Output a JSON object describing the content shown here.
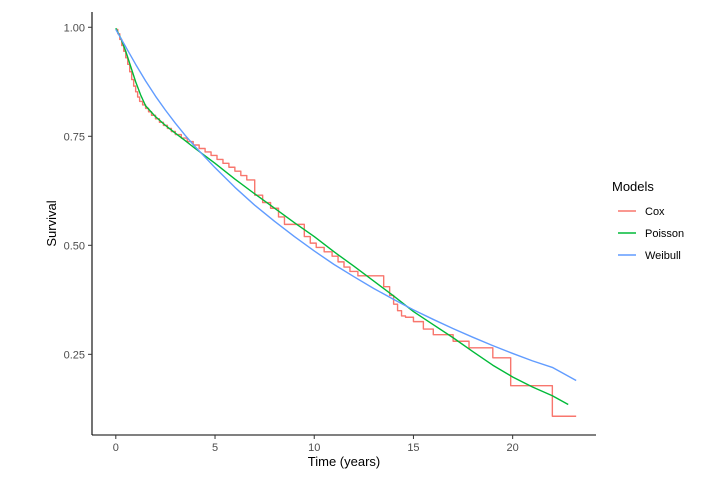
{
  "chart_data": {
    "type": "line",
    "title": "",
    "xlabel": "Time (years)",
    "ylabel": "Survival",
    "xlim": [
      -1.2,
      24.2
    ],
    "ylim": [
      0.065,
      1.035
    ],
    "xticks": [
      0,
      5,
      10,
      15,
      20
    ],
    "xtick_labels": [
      "0",
      "5",
      "10",
      "15",
      "20"
    ],
    "yticks": [
      0.25,
      0.5,
      0.75,
      1.0
    ],
    "ytick_labels": [
      "0.25",
      "0.50",
      "0.75",
      "1.00"
    ],
    "grid": false,
    "legend": {
      "title": "Models",
      "placement": "right"
    },
    "series": [
      {
        "name": "Cox",
        "style": "step",
        "color": "#F8766D",
        "x": [
          0,
          0.1,
          0.2,
          0.3,
          0.4,
          0.5,
          0.6,
          0.7,
          0.8,
          0.9,
          1.0,
          1.1,
          1.2,
          1.35,
          1.5,
          1.65,
          1.8,
          2.0,
          2.2,
          2.4,
          2.6,
          2.8,
          3.0,
          3.3,
          3.6,
          3.9,
          4.2,
          4.5,
          4.8,
          5.1,
          5.4,
          5.7,
          6.0,
          6.3,
          6.6,
          7.0,
          7.4,
          7.8,
          8.2,
          8.5,
          9.5,
          9.8,
          10.1,
          10.5,
          10.9,
          11.2,
          11.5,
          11.8,
          12.2,
          13.5,
          13.8,
          14.0,
          14.2,
          14.4,
          14.6,
          15.0,
          15.5,
          16.0,
          17.0,
          17.8,
          19.0,
          19.9,
          22.0,
          23.2
        ],
        "y": [
          0.995,
          0.985,
          0.972,
          0.958,
          0.945,
          0.93,
          0.915,
          0.898,
          0.88,
          0.865,
          0.852,
          0.84,
          0.83,
          0.822,
          0.814,
          0.806,
          0.798,
          0.79,
          0.782,
          0.775,
          0.768,
          0.761,
          0.754,
          0.746,
          0.738,
          0.73,
          0.722,
          0.714,
          0.706,
          0.697,
          0.688,
          0.679,
          0.67,
          0.66,
          0.65,
          0.615,
          0.598,
          0.585,
          0.565,
          0.548,
          0.52,
          0.505,
          0.495,
          0.485,
          0.475,
          0.462,
          0.45,
          0.44,
          0.43,
          0.405,
          0.385,
          0.365,
          0.35,
          0.338,
          0.335,
          0.325,
          0.308,
          0.295,
          0.28,
          0.265,
          0.242,
          0.178,
          0.108,
          0.108
        ]
      },
      {
        "name": "Poisson",
        "style": "line",
        "color": "#00BA38",
        "x": [
          0,
          0.25,
          0.5,
          0.75,
          1.0,
          1.25,
          1.5,
          2.0,
          2.5,
          3.0,
          3.5,
          4.0,
          5.0,
          6.0,
          7.0,
          8.0,
          9.0,
          10.0,
          11.0,
          12.0,
          13.0,
          14.0,
          15.0,
          16.0,
          17.0,
          18.0,
          19.0,
          20.0,
          21.0,
          22.0,
          22.8
        ],
        "y": [
          0.998,
          0.975,
          0.945,
          0.91,
          0.875,
          0.845,
          0.82,
          0.795,
          0.775,
          0.757,
          0.74,
          0.722,
          0.688,
          0.652,
          0.618,
          0.585,
          0.552,
          0.52,
          0.485,
          0.452,
          0.418,
          0.384,
          0.348,
          0.318,
          0.288,
          0.256,
          0.225,
          0.198,
          0.175,
          0.155,
          0.135
        ]
      },
      {
        "name": "Weibull",
        "style": "line",
        "color": "#619CFF",
        "x": [
          0,
          0.25,
          0.5,
          1.0,
          1.5,
          2.0,
          2.5,
          3.0,
          3.5,
          4.0,
          5.0,
          6.0,
          7.0,
          8.0,
          9.0,
          10.0,
          11.0,
          12.0,
          13.0,
          14.0,
          15.0,
          16.0,
          17.0,
          18.0,
          19.0,
          20.0,
          21.0,
          22.0,
          23.2
        ],
        "y": [
          0.995,
          0.975,
          0.955,
          0.915,
          0.877,
          0.842,
          0.81,
          0.78,
          0.752,
          0.726,
          0.678,
          0.633,
          0.592,
          0.555,
          0.52,
          0.487,
          0.456,
          0.428,
          0.401,
          0.376,
          0.352,
          0.33,
          0.309,
          0.289,
          0.27,
          0.252,
          0.235,
          0.22,
          0.19
        ]
      }
    ]
  }
}
